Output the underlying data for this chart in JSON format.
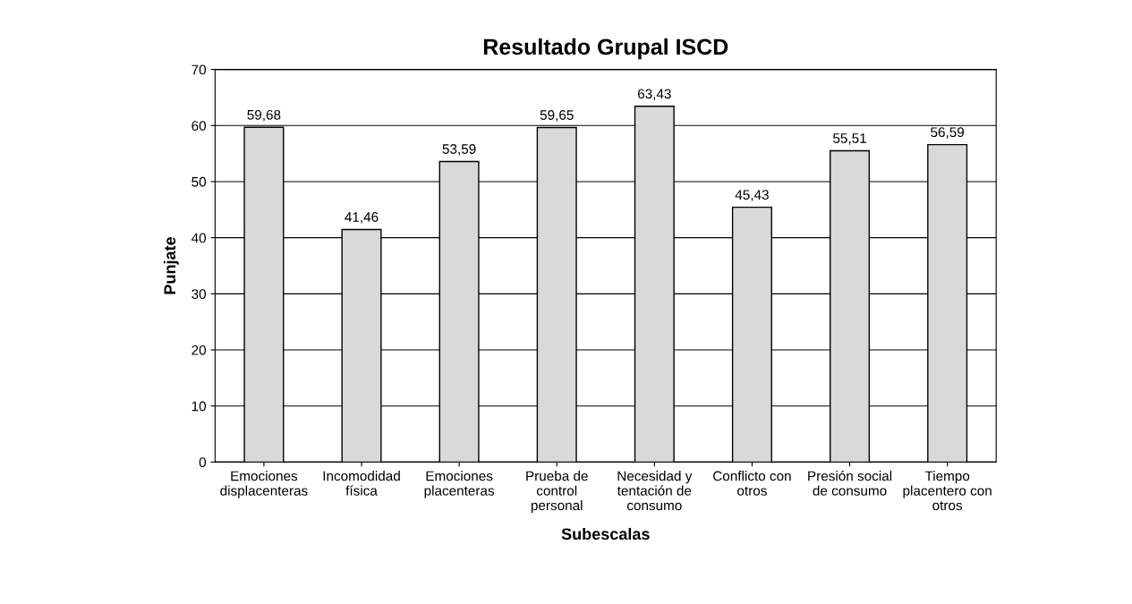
{
  "chart_data": {
    "type": "bar",
    "title": "Resultado Grupal ISCD",
    "xlabel": "Subescalas",
    "ylabel": "Punjate",
    "categories": [
      "Emociones\ndisplacenteras",
      "Incomodidad\nfísica",
      "Emociones\nplacenteras",
      "Prueba de\ncontrol\npersonal",
      "Necesidad y\ntentación de\nconsumo",
      "Conflicto con\notros",
      "Presión social\nde consumo",
      "Tiempo\nplacentero con\notros"
    ],
    "values": [
      59.68,
      41.46,
      53.59,
      59.65,
      63.43,
      45.43,
      55.51,
      56.59
    ],
    "value_labels": [
      "59,68",
      "41,46",
      "53,59",
      "59,65",
      "63,43",
      "45,43",
      "55,51",
      "56,59"
    ],
    "color": "#d9d9d9",
    "ylim": [
      0,
      70
    ],
    "yticks": [
      0,
      10,
      20,
      30,
      40,
      50,
      60,
      70
    ],
    "grid": "y"
  }
}
